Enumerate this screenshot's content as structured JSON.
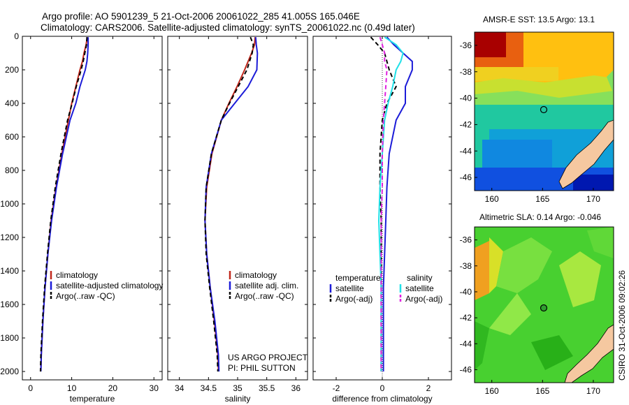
{
  "header": {
    "line1": "Argo profile: AO 5901239_5 21-Oct-2006 20061022_285 41.005S 165.046E",
    "line2": "Climatology: CARS2006. Satellite-adjusted climatology: synTS_20061022.nc (0.49d later)"
  },
  "colors": {
    "climatology": "#c0281c",
    "satellite": "#1c1cd8",
    "argo": "#000000",
    "argo_salinity_adj": "#e020e0",
    "satellite_salinity": "#20e0e8",
    "land": "#f5c8a0"
  },
  "credit": "CSIRO 31-Oct-2006 09:02:26",
  "project_note": [
    "US ARGO PROJECT",
    "PI: PHIL SUTTON"
  ],
  "chart_data": [
    {
      "type": "line",
      "panel": "temperature",
      "xlabel": "temperature",
      "ylabel": "",
      "xlim": [
        -2,
        32
      ],
      "ylim": [
        2050,
        0
      ],
      "xticks": [
        0,
        10,
        20,
        30
      ],
      "yticks": [
        0,
        200,
        400,
        600,
        800,
        1000,
        1200,
        1400,
        1600,
        1800,
        2000
      ],
      "legend": {
        "placement": "bottom-center",
        "entries": [
          "climatology",
          "satellite-adjusted climatology",
          "Argo(..raw -QC)"
        ]
      },
      "depth": [
        5,
        50,
        100,
        150,
        200,
        300,
        400,
        500,
        700,
        900,
        1100,
        1300,
        1500,
        1700,
        1900,
        2000
      ],
      "series": [
        {
          "name": "climatology",
          "color_key": "climatology",
          "dash": false,
          "values": [
            13.8,
            13.5,
            13.0,
            12.6,
            12.0,
            11.0,
            10.0,
            9.2,
            7.6,
            6.2,
            5.0,
            4.2,
            3.5,
            3.0,
            2.6,
            2.5
          ]
        },
        {
          "name": "satellite-adjusted climatology",
          "color_key": "satellite",
          "dash": false,
          "values": [
            14.0,
            14.0,
            13.9,
            13.7,
            13.3,
            12.0,
            11.0,
            9.6,
            7.8,
            6.3,
            5.1,
            4.2,
            3.5,
            3.0,
            2.6,
            2.5
          ]
        },
        {
          "name": "Argo(..raw -QC)",
          "color_key": "argo",
          "dash": true,
          "values": [
            13.7,
            13.6,
            13.2,
            12.8,
            12.3,
            11.1,
            10.1,
            9.0,
            7.4,
            6.0,
            4.9,
            4.1,
            3.4,
            2.9,
            2.5,
            2.4
          ]
        }
      ]
    },
    {
      "type": "line",
      "panel": "salinity",
      "xlabel": "salinity",
      "ylabel": "",
      "xlim": [
        33.8,
        36.2
      ],
      "ylim": [
        2050,
        0
      ],
      "xticks": [
        34,
        34.5,
        35,
        35.5,
        36
      ],
      "yticks": [
        0,
        200,
        400,
        600,
        800,
        1000,
        1200,
        1400,
        1600,
        1800,
        2000
      ],
      "legend": {
        "placement": "bottom-center",
        "entries": [
          "climatology",
          "satellite adj. clim.",
          "Argo(..raw -QC)"
        ]
      },
      "depth": [
        5,
        50,
        100,
        200,
        300,
        400,
        500,
        700,
        900,
        1100,
        1300,
        1500,
        1700,
        1900,
        2000
      ],
      "series": [
        {
          "name": "climatology",
          "color_key": "climatology",
          "dash": false,
          "values": [
            35.3,
            35.29,
            35.24,
            35.12,
            34.99,
            34.85,
            34.72,
            34.56,
            34.47,
            34.44,
            34.47,
            34.53,
            34.6,
            34.66,
            34.67
          ]
        },
        {
          "name": "satellite adj. clim.",
          "color_key": "satellite",
          "dash": false,
          "values": [
            35.31,
            35.32,
            35.34,
            35.33,
            35.18,
            34.95,
            34.72,
            34.55,
            34.46,
            34.44,
            34.47,
            34.53,
            34.61,
            34.67,
            34.68
          ]
        },
        {
          "name": "Argo(..raw -QC)",
          "color_key": "argo",
          "dash": true,
          "values": [
            35.22,
            35.27,
            35.25,
            35.16,
            35.01,
            34.86,
            34.72,
            34.55,
            34.46,
            34.44,
            34.46,
            34.52,
            34.59,
            34.65,
            34.66
          ]
        }
      ]
    },
    {
      "type": "line",
      "panel": "difference",
      "xlabel": "difference from climatology",
      "ylabel": "",
      "xlim": [
        -3,
        3
      ],
      "ylim": [
        2050,
        0
      ],
      "xticks": [
        -2,
        0,
        2
      ],
      "yticks": [
        0,
        200,
        400,
        600,
        800,
        1000,
        1200,
        1400,
        1600,
        1800,
        2000
      ],
      "legend": {
        "placement": "bottom-center",
        "entries": [
          "temperature",
          "satellite",
          "Argo(-adj)",
          "salinity",
          "satellite",
          "Argo(-adj)"
        ]
      },
      "depth": [
        5,
        50,
        100,
        150,
        200,
        300,
        400,
        500,
        700,
        900,
        1100,
        1300,
        1500,
        1700,
        1900,
        2000
      ],
      "series": [
        {
          "name": "satellite",
          "group": "temperature",
          "color_key": "satellite",
          "dash": false,
          "values": [
            0.2,
            0.5,
            0.9,
            1.3,
            1.3,
            1.0,
            1.0,
            0.6,
            0.3,
            0.2,
            0.15,
            0.1,
            0.05,
            0.05,
            0.05,
            0.05
          ]
        },
        {
          "name": "Argo(-adj)",
          "group": "temperature",
          "color_key": "argo",
          "dash": true,
          "values": [
            -0.5,
            -0.2,
            0.1,
            0.2,
            0.3,
            0.6,
            0.2,
            0.0,
            -0.1,
            -0.1,
            -0.05,
            -0.05,
            -0.05,
            -0.05,
            -0.05,
            -0.05
          ]
        },
        {
          "name": "satellite",
          "group": "salinity",
          "color_key": "satellite_salinity",
          "dash": false,
          "values": [
            0.1,
            0.6,
            0.9,
            0.8,
            0.6,
            0.45,
            0.25,
            0.1,
            0.0,
            -0.1,
            -0.15,
            -0.1,
            -0.05,
            -0.05,
            -0.05,
            -0.05
          ]
        },
        {
          "name": "Argo(-adj)",
          "group": "salinity",
          "color_key": "argo_salinity_adj",
          "dash": true,
          "values": [
            -0.1,
            0.0,
            0.1,
            0.1,
            0.2,
            0.15,
            0.1,
            0.05,
            0.0,
            0.0,
            -0.05,
            -0.05,
            -0.05,
            -0.05,
            -0.05,
            -0.05
          ]
        }
      ]
    },
    {
      "type": "heatmap",
      "panel": "sst-map",
      "title": "AMSR-E SST: 13.5 Argo: 13.1",
      "xlim": [
        158.3,
        172
      ],
      "ylim": [
        -47,
        -35
      ],
      "xticks": [
        160,
        165,
        170
      ],
      "yticks": [
        -36,
        -38,
        -40,
        -42,
        -44,
        -46
      ],
      "float_position": {
        "lon": 165.046,
        "lat": -41.005
      }
    },
    {
      "type": "heatmap",
      "panel": "sla-map",
      "title": "Altimetric SLA: 0.14 Argo: -0.046",
      "xlim": [
        158.3,
        172
      ],
      "ylim": [
        -47,
        -35
      ],
      "xticks": [
        160,
        165,
        170
      ],
      "yticks": [
        -36,
        -38,
        -40,
        -42,
        -44,
        -46
      ],
      "float_position": {
        "lon": 165.046,
        "lat": -41.005
      }
    }
  ]
}
